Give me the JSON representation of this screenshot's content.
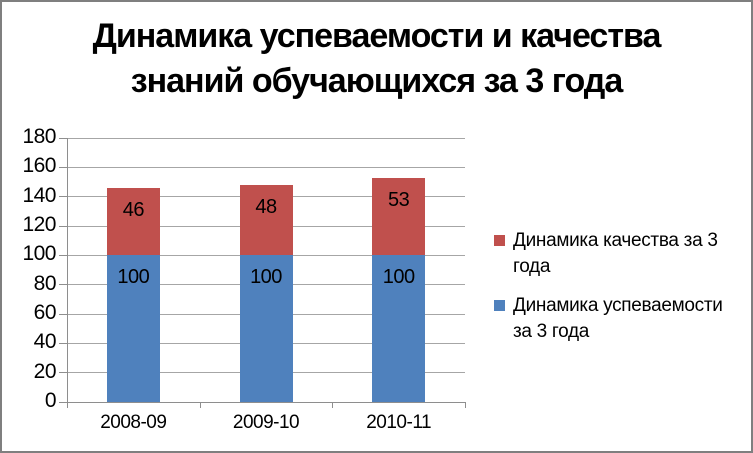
{
  "chart_data": {
    "type": "bar",
    "stacked": true,
    "title": "Динамика успеваемости и качества знаний обучающихся за 3 года",
    "title_lines": [
      "Динамика успеваемости и качества",
      "знаний обучающихся за 3 года"
    ],
    "categories": [
      "2008-09",
      "2009-10",
      "2010-11"
    ],
    "series": [
      {
        "name": "Динамика успеваемости за 3 года",
        "color": "#4F81BD",
        "values": [
          100,
          100,
          100
        ]
      },
      {
        "name": "Динамика качества за 3 года",
        "color": "#C0504D",
        "values": [
          46,
          48,
          53
        ]
      }
    ],
    "data_labels": true,
    "xlabel": "",
    "ylabel": "",
    "ylim": [
      0,
      180
    ],
    "ytick_step": 20,
    "yticks": [
      0,
      20,
      40,
      60,
      80,
      100,
      120,
      140,
      160,
      180
    ],
    "grid": true,
    "legend_position": "right",
    "legend": [
      {
        "color": "#C0504D",
        "lines": [
          "Динамика качества за 3",
          "года"
        ]
      },
      {
        "color": "#4F81BD",
        "lines": [
          "Динамика успеваемости",
          "за 3 года"
        ]
      }
    ],
    "colors": {
      "gridline": "#A6A6A6",
      "axis": "#8E8E8E",
      "frame_border": "#7F7F7F",
      "text": "#000000"
    }
  }
}
